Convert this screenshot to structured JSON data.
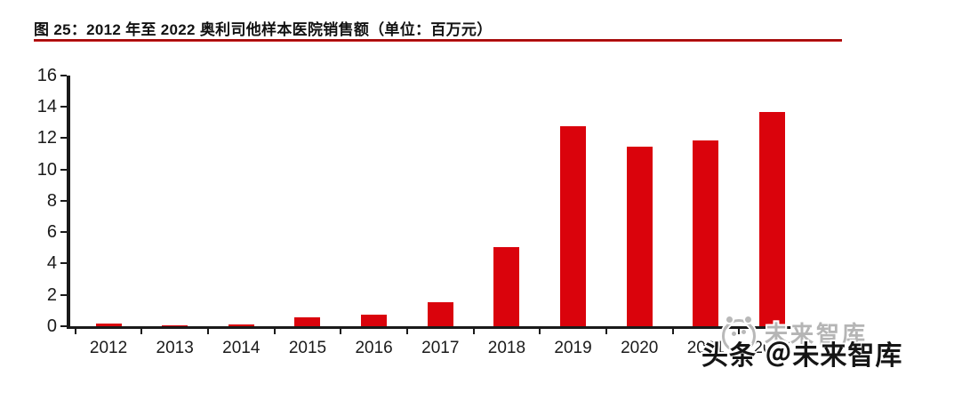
{
  "figure": {
    "title": "图 25：2012 年至 2022 奥利司他样本医院销售额（单位：百万元）",
    "underline_color": "#a30505"
  },
  "chart_data": {
    "type": "bar",
    "title": "2012 年至 2022 奥利司他样本医院销售额",
    "unit": "百万元",
    "categories": [
      "2012",
      "2013",
      "2014",
      "2015",
      "2016",
      "2017",
      "2018",
      "2019",
      "2020",
      "2021",
      "2022"
    ],
    "values": [
      0.2,
      0.13,
      0.17,
      0.65,
      0.8,
      1.6,
      5.1,
      12.8,
      11.5,
      11.9,
      13.7
    ],
    "ylim": [
      0,
      16
    ],
    "yticks": [
      0,
      2,
      4,
      6,
      8,
      10,
      12,
      14,
      16
    ],
    "xlabel": "",
    "ylabel": "",
    "bar_color": "#da030c",
    "axis_color": "#1a1a1a",
    "grid": false,
    "legend": false
  },
  "watermark": {
    "gray_text": "未来智库",
    "black_text": "头条 ＠未来智库",
    "logo": "panda-face-logo"
  }
}
